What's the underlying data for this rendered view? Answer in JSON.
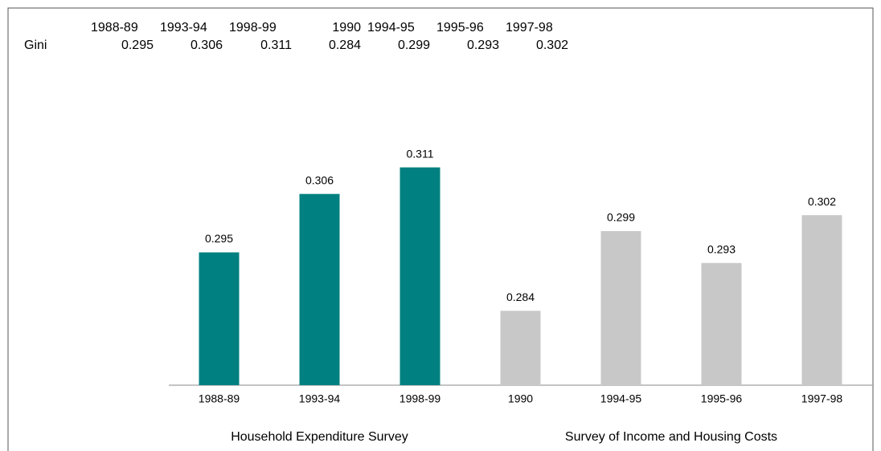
{
  "table": {
    "row_label": "Gini"
  },
  "chart_data": {
    "type": "bar",
    "categories": [
      "1988-89",
      "1993-94",
      "1998-99",
      "1990",
      "1994-95",
      "1995-96",
      "1997-98"
    ],
    "series": [
      {
        "name": "Household Expenditure Survey",
        "color": "#008080",
        "values": [
          0.295,
          0.306,
          0.311,
          null,
          null,
          null,
          null
        ]
      },
      {
        "name": "Survey of Income and Housing Costs",
        "color": "#c8c8c8",
        "values": [
          null,
          null,
          null,
          0.284,
          0.299,
          0.293,
          0.302
        ]
      }
    ],
    "ylim": [
      0.27,
      0.32
    ]
  }
}
